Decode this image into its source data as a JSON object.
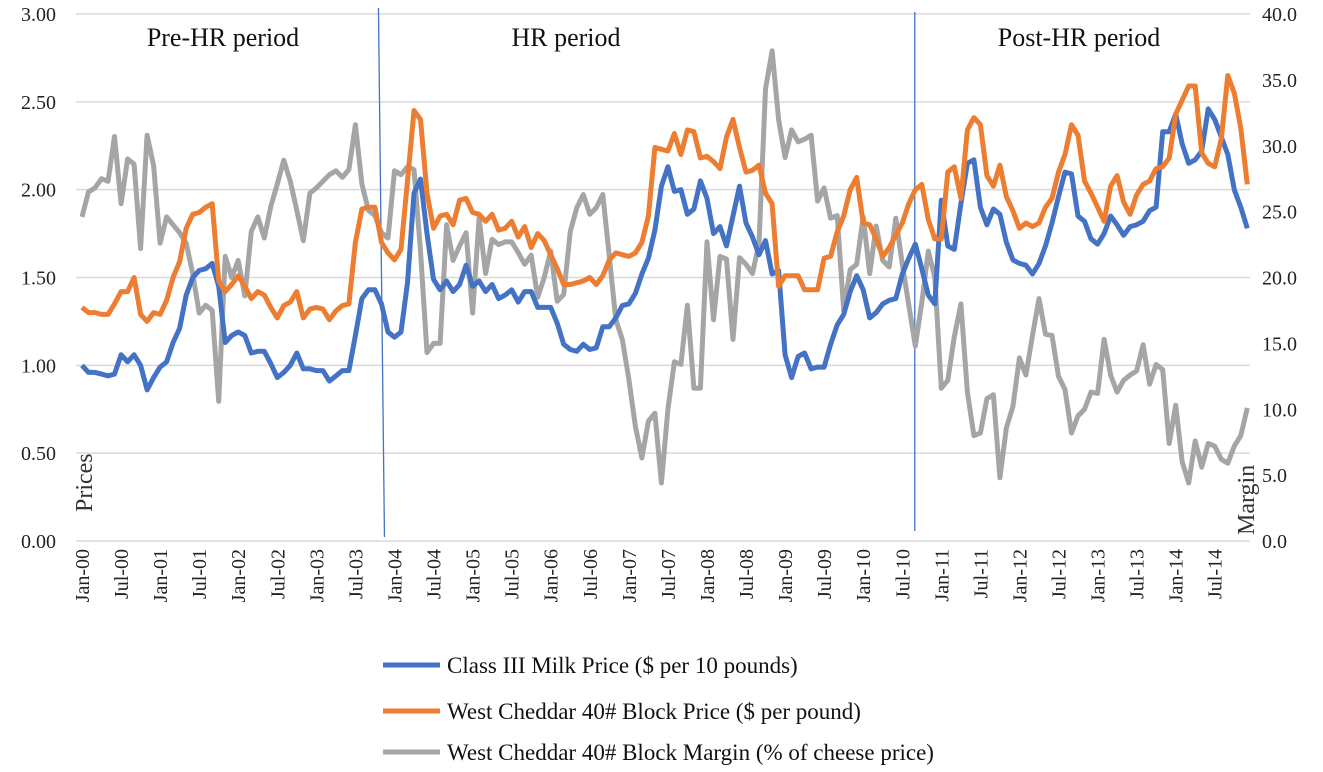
{
  "chart_data": {
    "type": "line",
    "title": "",
    "ylabel": "Prices",
    "y2label": "Margin",
    "ylim": [
      0,
      3.0
    ],
    "y2lim": [
      0,
      40.0
    ],
    "yticks": [
      "0.00",
      "0.50",
      "1.00",
      "1.50",
      "2.00",
      "2.50",
      "3.00"
    ],
    "y2ticks": [
      "0.0",
      "5.0",
      "10.0",
      "15.0",
      "20.0",
      "25.0",
      "30.0",
      "35.0",
      "40.0"
    ],
    "grid": true,
    "legend_position": "bottom",
    "x_start": "Jan-00",
    "x_end": "Dec-14",
    "xticks": [
      "Jan-00",
      "Jul-00",
      "Jan-01",
      "Jul-01",
      "Jan-02",
      "Jul-02",
      "Jan-03",
      "Jul-03",
      "Jan-04",
      "Jul-04",
      "Jan-05",
      "Jul-05",
      "Jan-06",
      "Jul-06",
      "Jan-07",
      "Jul-07",
      "Jan-08",
      "Jul-08",
      "Jan-09",
      "Jul-09",
      "Jan-10",
      "Jul-10",
      "Jan-11",
      "Jul-11",
      "Jan-12",
      "Jul-12",
      "Jan-13",
      "Jul-13",
      "Jan-14",
      "Jul-14"
    ],
    "periods": [
      {
        "label": "Pre-HR period",
        "start_index": 0
      },
      {
        "label": "HR period",
        "start_index": 46
      },
      {
        "label": "Post-HR period",
        "start_index": 128
      }
    ],
    "period_boundaries": [
      "Nov-03",
      "Sep-10"
    ],
    "series": [
      {
        "name": "Class III Milk Price ($ per 10 pounds)",
        "axis": "left",
        "color": "#4472C4",
        "values": [
          1.0,
          0.96,
          0.96,
          0.95,
          0.94,
          0.95,
          1.06,
          1.02,
          1.06,
          1.0,
          0.86,
          0.93,
          0.99,
          1.02,
          1.13,
          1.21,
          1.4,
          1.5,
          1.54,
          1.55,
          1.58,
          1.45,
          1.13,
          1.17,
          1.19,
          1.17,
          1.07,
          1.08,
          1.08,
          1.01,
          0.93,
          0.96,
          1.0,
          1.07,
          0.98,
          0.98,
          0.97,
          0.97,
          0.91,
          0.94,
          0.97,
          0.97,
          1.17,
          1.38,
          1.43,
          1.43,
          1.35,
          1.19,
          1.16,
          1.19,
          1.47,
          1.98,
          2.06,
          1.75,
          1.49,
          1.43,
          1.48,
          1.42,
          1.46,
          1.57,
          1.45,
          1.48,
          1.42,
          1.46,
          1.38,
          1.4,
          1.43,
          1.36,
          1.42,
          1.42,
          1.33,
          1.33,
          1.33,
          1.24,
          1.12,
          1.09,
          1.08,
          1.12,
          1.09,
          1.1,
          1.22,
          1.22,
          1.27,
          1.34,
          1.35,
          1.41,
          1.52,
          1.61,
          1.77,
          2.02,
          2.13,
          1.99,
          2.0,
          1.86,
          1.89,
          2.05,
          1.95,
          1.75,
          1.79,
          1.68,
          1.85,
          2.02,
          1.81,
          1.73,
          1.63,
          1.71,
          1.52,
          1.54,
          1.06,
          0.93,
          1.05,
          1.07,
          0.98,
          0.99,
          0.99,
          1.12,
          1.23,
          1.29,
          1.42,
          1.51,
          1.43,
          1.27,
          1.3,
          1.35,
          1.37,
          1.38,
          1.52,
          1.61,
          1.69,
          1.55,
          1.4,
          1.35,
          1.94,
          1.68,
          1.66,
          1.92,
          2.15,
          2.17,
          1.9,
          1.8,
          1.89,
          1.86,
          1.7,
          1.6,
          1.58,
          1.57,
          1.52,
          1.58,
          1.68,
          1.81,
          1.96,
          2.1,
          2.09,
          1.85,
          1.82,
          1.72,
          1.69,
          1.75,
          1.85,
          1.8,
          1.74,
          1.79,
          1.8,
          1.82,
          1.88,
          1.9,
          2.33,
          2.33,
          2.43,
          2.26,
          2.15,
          2.17,
          2.22,
          2.46,
          2.4,
          2.3,
          2.2,
          2.0,
          1.9,
          1.78
        ]
      },
      {
        "name": "West Cheddar 40# Block Price ($ per pound)",
        "axis": "left",
        "color": "#ED7D31",
        "values": [
          1.33,
          1.3,
          1.3,
          1.29,
          1.29,
          1.35,
          1.42,
          1.42,
          1.5,
          1.29,
          1.25,
          1.3,
          1.29,
          1.37,
          1.5,
          1.59,
          1.78,
          1.86,
          1.87,
          1.9,
          1.92,
          1.48,
          1.42,
          1.46,
          1.51,
          1.45,
          1.38,
          1.42,
          1.4,
          1.33,
          1.27,
          1.34,
          1.36,
          1.42,
          1.27,
          1.32,
          1.33,
          1.32,
          1.26,
          1.31,
          1.34,
          1.35,
          1.7,
          1.89,
          1.9,
          1.9,
          1.7,
          1.64,
          1.6,
          1.66,
          2.05,
          2.45,
          2.4,
          1.98,
          1.78,
          1.85,
          1.86,
          1.8,
          1.94,
          1.95,
          1.87,
          1.86,
          1.82,
          1.86,
          1.77,
          1.78,
          1.82,
          1.73,
          1.79,
          1.67,
          1.75,
          1.71,
          1.63,
          1.55,
          1.46,
          1.46,
          1.47,
          1.48,
          1.5,
          1.46,
          1.51,
          1.6,
          1.64,
          1.63,
          1.62,
          1.64,
          1.7,
          1.85,
          2.24,
          2.23,
          2.22,
          2.32,
          2.2,
          2.34,
          2.33,
          2.18,
          2.19,
          2.16,
          2.12,
          2.3,
          2.4,
          2.24,
          2.1,
          2.11,
          2.14,
          1.98,
          1.92,
          1.45,
          1.51,
          1.51,
          1.51,
          1.43,
          1.43,
          1.43,
          1.61,
          1.62,
          1.76,
          1.85,
          2.0,
          2.07,
          1.81,
          1.8,
          1.72,
          1.62,
          1.67,
          1.74,
          1.81,
          1.92,
          2.0,
          2.03,
          1.83,
          1.72,
          1.72,
          2.1,
          2.13,
          1.95,
          2.34,
          2.41,
          2.37,
          2.08,
          2.02,
          2.14,
          1.96,
          1.88,
          1.78,
          1.81,
          1.79,
          1.81,
          1.9,
          1.95,
          2.1,
          2.2,
          2.37,
          2.31,
          2.05,
          1.98,
          1.9,
          1.82,
          2.02,
          2.08,
          1.93,
          1.86,
          1.97,
          2.03,
          2.05,
          2.12,
          2.13,
          2.18,
          2.43,
          2.51,
          2.59,
          2.59,
          2.21,
          2.15,
          2.13,
          2.29,
          2.65,
          2.55,
          2.35,
          2.03
        ]
      },
      {
        "name": "West Cheddar 40# Block Margin (% of cheese price)",
        "axis": "right",
        "color": "#A5A5A5",
        "values": [
          24.6,
          26.5,
          26.8,
          27.5,
          27.3,
          30.7,
          25.6,
          29.0,
          28.6,
          22.2,
          30.8,
          28.5,
          22.6,
          24.6,
          24.0,
          23.4,
          22.6,
          20.3,
          17.3,
          17.9,
          17.5,
          10.6,
          21.6,
          20.0,
          21.3,
          18.6,
          23.5,
          24.6,
          23.0,
          25.4,
          27.1,
          28.9,
          27.3,
          25.1,
          22.8,
          26.4,
          26.8,
          27.3,
          27.8,
          28.1,
          27.6,
          28.2,
          31.6,
          27.1,
          25.1,
          24.7,
          23.4,
          23.0,
          28.1,
          27.8,
          28.4,
          28.2,
          22.0,
          14.3,
          15.0,
          15.0,
          24.0,
          21.3,
          22.4,
          23.4,
          17.3,
          24.5,
          20.3,
          22.9,
          22.5,
          22.7,
          22.7,
          21.9,
          21.0,
          21.7,
          18.5,
          20.0,
          22.0,
          18.2,
          18.7,
          23.5,
          25.3,
          26.3,
          24.8,
          25.3,
          26.3,
          21.6,
          16.8,
          15.3,
          12.3,
          8.7,
          6.3,
          9.1,
          9.7,
          4.4,
          10.0,
          13.6,
          13.4,
          17.9,
          11.6,
          11.6,
          22.7,
          16.8,
          21.6,
          21.4,
          15.3,
          21.5,
          21.0,
          20.3,
          22.6,
          34.3,
          37.2,
          32.0,
          29.1,
          31.2,
          30.3,
          30.5,
          30.8,
          25.8,
          26.8,
          24.5,
          24.7,
          17.5,
          20.6,
          21.0,
          24.6,
          20.3,
          23.9,
          21.3,
          20.8,
          24.5,
          21.0,
          17.9,
          14.8,
          18.1,
          22.0,
          20.0,
          11.6,
          12.2,
          15.5,
          18.0,
          11.3,
          8.0,
          8.2,
          10.8,
          11.1,
          4.8,
          8.6,
          10.2,
          13.9,
          12.6,
          15.6,
          18.4,
          15.7,
          15.6,
          12.5,
          11.5,
          8.2,
          9.5,
          10.0,
          11.3,
          11.2,
          15.3,
          12.6,
          11.3,
          12.2,
          12.6,
          12.9,
          14.9,
          11.9,
          13.4,
          13.0,
          7.4,
          10.3,
          6.0,
          4.4,
          7.6,
          5.6,
          7.4,
          7.2,
          6.2,
          5.9,
          7.2,
          8.0,
          10.1
        ]
      }
    ]
  }
}
